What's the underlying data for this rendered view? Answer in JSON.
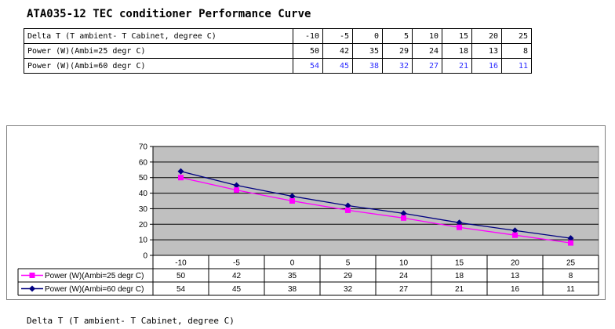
{
  "title": "ATA035-12  TEC conditioner Performance Curve",
  "table": {
    "rows": [
      {
        "label": "Delta T (T ambient- T Cabinet, degree C)",
        "values": [
          "-10",
          "-5",
          "0",
          "5",
          "10",
          "15",
          "20",
          "25"
        ]
      },
      {
        "label": "Power (W)(Ambi=25 degr C)",
        "values": [
          "50",
          "42",
          "35",
          "29",
          "24",
          "18",
          "13",
          "8"
        ]
      },
      {
        "label": "Power (W)(Ambi=60 degr C)",
        "values": [
          "54",
          "45",
          "38",
          "32",
          "27",
          "21",
          "16",
          "11"
        ]
      }
    ]
  },
  "chart_data": {
    "type": "line",
    "categories": [
      "-10",
      "-5",
      "0",
      "5",
      "10",
      "15",
      "20",
      "25"
    ],
    "series": [
      {
        "name": "Power (W)(Ambi=25 degr C)",
        "values": [
          50,
          42,
          35,
          29,
          24,
          18,
          13,
          8
        ],
        "color": "#ff00ff",
        "marker": "square"
      },
      {
        "name": "Power (W)(Ambi=60 degr C)",
        "values": [
          54,
          45,
          38,
          32,
          27,
          21,
          16,
          11
        ],
        "color": "#000080",
        "marker": "diamond"
      }
    ],
    "ylim": [
      0,
      70
    ],
    "yticks": [
      0,
      10,
      20,
      30,
      40,
      50,
      60,
      70
    ],
    "grid": true,
    "legend": "data-table-left",
    "plot_background": "#c0c0c0"
  },
  "xlabel": "Delta T (T ambient- T Cabinet, degree C)"
}
